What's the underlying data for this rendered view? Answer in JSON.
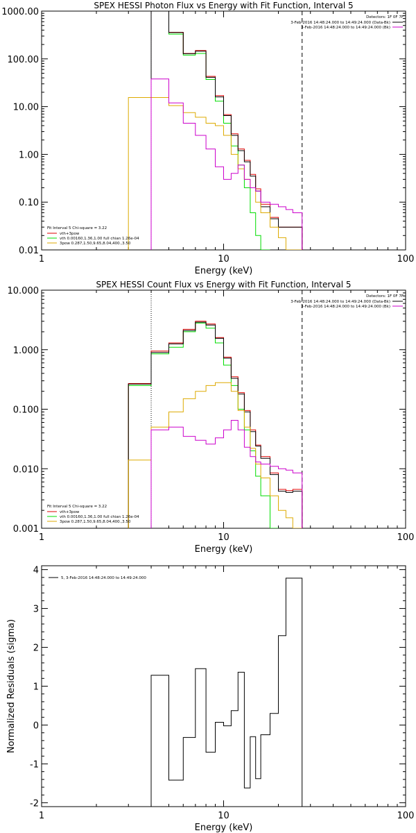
{
  "colors": {
    "red": "#dd0000",
    "green": "#00dd00",
    "black": "#000000",
    "yellow": "#ddaa00",
    "magenta": "#cc00cc"
  },
  "chart_data": [
    {
      "type": "line",
      "title": "SPEX HESSI Photon Flux vs Energy with Fit Function, Interval 5",
      "xlabel": "Energy (keV)",
      "ylabel": "",
      "xscale": "log",
      "yscale": "log",
      "xlim": [
        1,
        100
      ],
      "ylim": [
        0.01,
        1000
      ],
      "xticks": [
        "1",
        "10",
        "100"
      ],
      "yticks": [
        "0.01",
        "0.10",
        "1.00",
        "10.00",
        "100.00",
        "1000.00"
      ],
      "vlines": [
        {
          "x": 4.0,
          "style": "dotted",
          "color": "#cc00cc"
        },
        {
          "x": 27.0,
          "style": "dashed",
          "color": "#000000"
        }
      ],
      "legend_right": {
        "header": "Detectors: 1F 0F 7F",
        "items": [
          {
            "text": "3-Feb-2016 14:48:24.000 to 14:49:24.000 (Data-Bk)",
            "color": "#000000"
          },
          {
            "text": "3-Feb-2016 14:48:24.000 to 14:49:24.000 (Bk)",
            "color": "#cc00cc"
          }
        ]
      },
      "legend_left": {
        "header": "Fit Interval 5   Chi-square = 3.22",
        "items": [
          {
            "text": "vth+3pow",
            "color": "#dd0000"
          },
          {
            "text": "vth 0.00160,1.36,1.00  full chian 1.26e-04",
            "color": "#00dd00"
          },
          {
            "text": "3pow 0.287,1.50,9.65,8.04,400.,3.50",
            "color": "#ddaa00"
          }
        ]
      },
      "edges": [
        3.0,
        4.0,
        5.0,
        6.0,
        7.0,
        8.0,
        9.0,
        10.0,
        11.0,
        12.0,
        13.0,
        14.0,
        15.0,
        16.0,
        18.0,
        20.0,
        22.0,
        24.0,
        27.0
      ],
      "series": [
        {
          "key": "green",
          "color": "#00dd00",
          "values": [
            null,
            1000,
            330,
            120,
            130,
            37,
            13,
            4.5,
            1.5,
            0.6,
            0.2,
            0.06,
            0.02,
            0.01,
            null,
            null,
            null,
            null
          ]
        },
        {
          "key": "red",
          "color": "#dd0000",
          "values": [
            null,
            1000,
            360,
            130,
            150,
            43,
            17,
            6.8,
            2.7,
            1.3,
            0.75,
            0.38,
            0.19,
            0.09,
            0.048,
            0.03,
            0.03,
            0.03
          ]
        },
        {
          "key": "black",
          "color": "#000000",
          "values": [
            null,
            1000,
            355,
            128,
            145,
            41,
            16,
            6.5,
            2.5,
            1.2,
            0.7,
            0.35,
            0.17,
            0.08,
            0.045,
            0.03,
            0.03,
            0.03
          ]
        },
        {
          "key": "yellow",
          "color": "#ddaa00",
          "values": [
            15.5,
            15.5,
            10.5,
            7.5,
            6.0,
            4.5,
            4.0,
            2.5,
            1.0,
            0.5,
            0.3,
            0.2,
            0.1,
            0.06,
            0.03,
            0.018,
            0.01,
            0.01
          ]
        },
        {
          "key": "magenta",
          "color": "#cc00cc",
          "values": [
            null,
            38,
            12,
            4.5,
            2.5,
            1.3,
            0.55,
            0.3,
            0.4,
            0.6,
            0.3,
            0.2,
            0.17,
            0.1,
            0.09,
            0.08,
            0.07,
            0.06
          ]
        }
      ]
    },
    {
      "type": "line",
      "title": "SPEX HESSI Count Flux vs Energy with Fit Function, Interval 5",
      "xlabel": "Energy (keV)",
      "ylabel": "",
      "xscale": "log",
      "yscale": "log",
      "xlim": [
        1,
        100
      ],
      "ylim": [
        0.001,
        10
      ],
      "xticks": [
        "1",
        "10",
        "100"
      ],
      "yticks": [
        "0.001",
        "0.010",
        "0.100",
        "1.000",
        "10.000"
      ],
      "vlines": [
        {
          "x": 4.0,
          "style": "dotted",
          "color": "#000000"
        },
        {
          "x": 27.0,
          "style": "dashed",
          "color": "#000000"
        }
      ],
      "legend_right": {
        "header": "Detectors: 1F 0F 7F",
        "items": [
          {
            "text": "3-Feb-2016 14:48:24.000 to 14:49:24.000 (Data-Bk)",
            "color": "#000000"
          },
          {
            "text": "3-Feb-2016 14:48:24.000 to 14:49:24.000 (Bk)",
            "color": "#cc00cc"
          }
        ]
      },
      "legend_left": {
        "header": "Fit Interval 5   Chi-square = 3.22",
        "items": [
          {
            "text": "vth+3pow",
            "color": "#dd0000"
          },
          {
            "text": "vth 0.00160,1.36,1.00  full chian 1.26e-04",
            "color": "#00dd00"
          },
          {
            "text": "3pow 0.287,1.50,9.65,8.04,400.,3.50",
            "color": "#ddaa00"
          }
        ]
      },
      "edges": [
        3.0,
        4.0,
        5.0,
        6.0,
        7.0,
        8.0,
        9.0,
        10.0,
        11.0,
        12.0,
        13.0,
        14.0,
        15.0,
        16.0,
        18.0,
        20.0,
        22.0,
        24.0,
        27.0
      ],
      "series": [
        {
          "key": "green",
          "color": "#00dd00",
          "values": [
            0.25,
            0.85,
            1.1,
            2.0,
            2.8,
            2.3,
            1.3,
            0.55,
            0.25,
            0.1,
            0.045,
            0.02,
            0.0075,
            0.0035,
            0.001,
            null,
            null,
            null
          ]
        },
        {
          "key": "red",
          "color": "#dd0000",
          "values": [
            0.27,
            0.95,
            1.3,
            2.2,
            3.0,
            2.7,
            1.6,
            0.75,
            0.35,
            0.19,
            0.095,
            0.045,
            0.025,
            0.016,
            0.0085,
            0.0045,
            0.0043,
            0.0045
          ]
        },
        {
          "key": "black",
          "color": "#000000",
          "values": [
            0.265,
            0.9,
            1.25,
            2.1,
            2.9,
            2.6,
            1.55,
            0.72,
            0.33,
            0.18,
            0.09,
            0.042,
            0.024,
            0.015,
            0.008,
            0.0042,
            0.004,
            0.0042
          ]
        },
        {
          "key": "yellow",
          "color": "#ddaa00",
          "values": [
            0.014,
            0.05,
            0.09,
            0.15,
            0.2,
            0.25,
            0.28,
            0.28,
            0.2,
            0.095,
            0.05,
            0.022,
            0.012,
            0.007,
            0.0035,
            0.002,
            0.0015,
            0.001
          ]
        },
        {
          "key": "magenta",
          "color": "#cc00cc",
          "values": [
            null,
            0.045,
            0.05,
            0.035,
            0.03,
            0.026,
            0.033,
            0.045,
            0.065,
            0.045,
            0.023,
            0.016,
            0.013,
            0.012,
            0.011,
            0.01,
            0.0095,
            0.0085
          ]
        }
      ]
    },
    {
      "type": "line",
      "title": "",
      "xlabel": "Energy (keV)",
      "ylabel": "Normalized Residuals (sigma)",
      "xscale": "log",
      "yscale": "linear",
      "xlim": [
        1,
        100
      ],
      "ylim": [
        -2.1,
        4.1
      ],
      "xticks": [
        "1",
        "10",
        "100"
      ],
      "yticks": [
        "-2",
        "-1",
        "0",
        "1",
        "2",
        "3",
        "4"
      ],
      "legend": {
        "text": "5, 3-Feb-2016 14:48:24.000 to 14:49:24.000",
        "color": "#000000"
      },
      "edges": [
        4.0,
        5.0,
        6.0,
        7.0,
        8.0,
        9.0,
        10.0,
        11.0,
        12.0,
        13.0,
        14.0,
        15.0,
        16.0,
        18.0,
        20.0,
        22.0,
        24.0,
        27.0
      ],
      "series": [
        {
          "key": "residuals",
          "color": "#000000",
          "values": [
            1.28,
            -1.42,
            -0.32,
            1.45,
            -0.7,
            0.07,
            -0.02,
            0.37,
            1.36,
            -1.62,
            -0.3,
            -1.38,
            -0.25,
            0.3,
            2.3,
            3.78,
            3.78
          ]
        }
      ]
    }
  ]
}
